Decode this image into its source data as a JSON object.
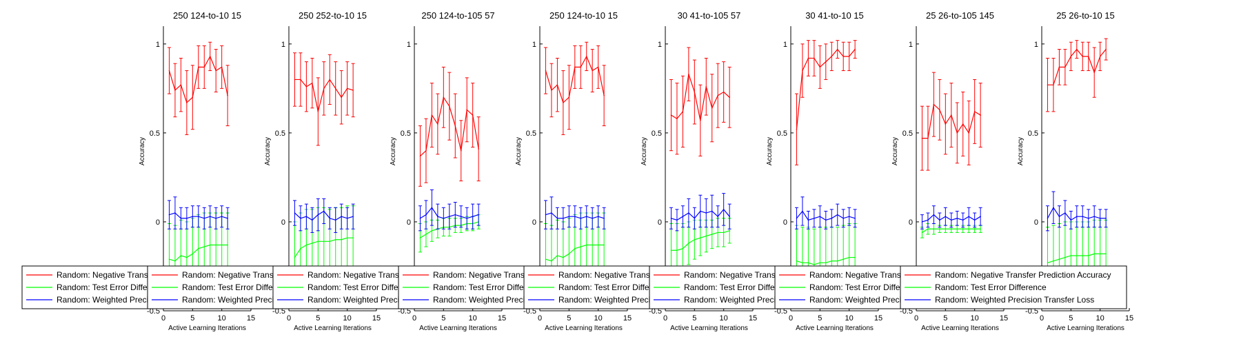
{
  "chart_data": [
    {
      "type": "line",
      "title": "250  124-to-10  15",
      "xlabel": "Active Learning Iterations",
      "ylabel": "Accuracy",
      "xlim": [
        0,
        15
      ],
      "ylim": [
        -0.5,
        1.1
      ],
      "xticks": [
        0,
        5,
        10,
        15
      ],
      "yticks": [
        -0.5,
        0,
        0.5,
        1
      ],
      "x": [
        1,
        2,
        3,
        4,
        5,
        6,
        7,
        8,
        9,
        10,
        11
      ],
      "legend_cut": 19,
      "series": [
        {
          "name": "Random: Negative Transfer Prediction Accuracy",
          "color": "#ff0000",
          "values": [
            0.85,
            0.74,
            0.77,
            0.67,
            0.7,
            0.87,
            0.87,
            0.93,
            0.85,
            0.87,
            0.71
          ],
          "errors": [
            0.13,
            0.15,
            0.15,
            0.18,
            0.18,
            0.12,
            0.12,
            0.08,
            0.12,
            0.12,
            0.17
          ]
        },
        {
          "name": "Random: Test Error Difference",
          "color": "#00ff00",
          "values": [
            -0.21,
            -0.22,
            -0.19,
            -0.2,
            -0.18,
            -0.15,
            -0.14,
            -0.13,
            -0.13,
            -0.13,
            -0.13
          ],
          "errors": [
            0.2,
            0.2,
            0.2,
            0.2,
            0.2,
            0.19,
            0.19,
            0.18,
            0.18,
            0.18,
            0.18
          ]
        },
        {
          "name": "Random: Weighted Precision Transfer Loss",
          "color": "#0000ff",
          "values": [
            0.04,
            0.05,
            0.02,
            0.02,
            0.03,
            0.03,
            0.02,
            0.03,
            0.02,
            0.03,
            0.02
          ],
          "errors": [
            0.08,
            0.09,
            0.06,
            0.06,
            0.06,
            0.06,
            0.06,
            0.06,
            0.06,
            0.06,
            0.06
          ]
        }
      ]
    },
    {
      "type": "line",
      "title": "250  252-to-10  15",
      "xlabel": "Active Learning Iterations",
      "ylabel": "Accuracy",
      "xlim": [
        0,
        15
      ],
      "ylim": [
        -0.5,
        1.1
      ],
      "xticks": [
        0,
        5,
        10,
        15
      ],
      "yticks": [
        -0.5,
        0,
        0.5,
        1
      ],
      "x": [
        1,
        2,
        3,
        4,
        5,
        6,
        7,
        8,
        9,
        10,
        11
      ],
      "legend_cut": 19,
      "series": [
        {
          "name": "Random: Negative Transfer Prediction Accuracy",
          "color": "#ff0000",
          "values": [
            0.8,
            0.8,
            0.76,
            0.78,
            0.62,
            0.75,
            0.8,
            0.75,
            0.7,
            0.75,
            0.74
          ],
          "errors": [
            0.15,
            0.15,
            0.14,
            0.14,
            0.19,
            0.15,
            0.14,
            0.15,
            0.15,
            0.15,
            0.15
          ]
        },
        {
          "name": "Random: Test Error Difference",
          "color": "#00ff00",
          "values": [
            -0.2,
            -0.15,
            -0.13,
            -0.12,
            -0.11,
            -0.11,
            -0.11,
            -0.1,
            -0.1,
            -0.09,
            -0.09
          ],
          "errors": [
            0.2,
            0.2,
            0.2,
            0.19,
            0.19,
            0.19,
            0.18,
            0.18,
            0.18,
            0.18,
            0.18
          ]
        },
        {
          "name": "Random: Weighted Precision Transfer Loss",
          "color": "#0000ff",
          "values": [
            0.05,
            0.02,
            0.03,
            0.01,
            0.04,
            0.06,
            0.02,
            0.01,
            0.03,
            0.02,
            0.03
          ],
          "errors": [
            0.07,
            0.07,
            0.07,
            0.07,
            0.09,
            0.07,
            0.06,
            0.07,
            0.07,
            0.06,
            0.07
          ]
        }
      ]
    },
    {
      "type": "line",
      "title": "250  124-to-105  57",
      "xlabel": "Active Learning Iterations",
      "ylabel": "Accuracy",
      "xlim": [
        0,
        15
      ],
      "ylim": [
        -0.5,
        1.1
      ],
      "xticks": [
        0,
        5,
        10,
        15
      ],
      "yticks": [
        -0.5,
        0,
        0.5,
        1
      ],
      "x": [
        1,
        2,
        3,
        4,
        5,
        6,
        7,
        8,
        9,
        10,
        11
      ],
      "legend_cut": 19,
      "series": [
        {
          "name": "Random: Negative Transfer Prediction Accuracy",
          "color": "#ff0000",
          "values": [
            0.37,
            0.4,
            0.6,
            0.55,
            0.7,
            0.65,
            0.54,
            0.4,
            0.63,
            0.6,
            0.41
          ],
          "errors": [
            0.17,
            0.18,
            0.18,
            0.17,
            0.17,
            0.19,
            0.18,
            0.17,
            0.18,
            0.18,
            0.18
          ]
        },
        {
          "name": "Random: Test Error Difference",
          "color": "#00ff00",
          "values": [
            -0.09,
            -0.07,
            -0.05,
            -0.04,
            -0.03,
            -0.03,
            -0.02,
            -0.02,
            -0.01,
            -0.01,
            0.0
          ],
          "errors": [
            0.08,
            0.07,
            0.06,
            0.05,
            0.05,
            0.05,
            0.04,
            0.04,
            0.04,
            0.04,
            0.04
          ]
        },
        {
          "name": "Random: Weighted Precision Transfer Loss",
          "color": "#0000ff",
          "values": [
            0.02,
            0.04,
            0.08,
            0.03,
            0.02,
            0.03,
            0.04,
            0.03,
            0.02,
            0.03,
            0.04
          ],
          "errors": [
            0.07,
            0.08,
            0.1,
            0.07,
            0.06,
            0.07,
            0.07,
            0.06,
            0.06,
            0.07,
            0.06
          ]
        }
      ]
    },
    {
      "type": "line",
      "title": "250  124-to-10  15",
      "xlabel": "Active Learning Iterations",
      "ylabel": "Accuracy",
      "xlim": [
        0,
        15
      ],
      "ylim": [
        -0.5,
        1.1
      ],
      "xticks": [
        0,
        5,
        10,
        15
      ],
      "yticks": [
        -0.5,
        0,
        0.5,
        1
      ],
      "x": [
        1,
        2,
        3,
        4,
        5,
        6,
        7,
        8,
        9,
        10,
        11
      ],
      "legend_cut": 19,
      "series": [
        {
          "name": "Random: Negative Transfer Prediction Accuracy",
          "color": "#ff0000",
          "values": [
            0.85,
            0.74,
            0.77,
            0.67,
            0.7,
            0.87,
            0.87,
            0.93,
            0.85,
            0.87,
            0.71
          ],
          "errors": [
            0.13,
            0.15,
            0.15,
            0.18,
            0.18,
            0.12,
            0.12,
            0.08,
            0.12,
            0.12,
            0.17
          ]
        },
        {
          "name": "Random: Test Error Difference",
          "color": "#00ff00",
          "values": [
            -0.21,
            -0.22,
            -0.19,
            -0.2,
            -0.18,
            -0.15,
            -0.14,
            -0.13,
            -0.13,
            -0.13,
            -0.13
          ],
          "errors": [
            0.2,
            0.2,
            0.2,
            0.2,
            0.2,
            0.19,
            0.19,
            0.18,
            0.18,
            0.18,
            0.18
          ]
        },
        {
          "name": "Random: Weighted Precision Transfer Loss",
          "color": "#0000ff",
          "values": [
            0.04,
            0.05,
            0.02,
            0.02,
            0.03,
            0.03,
            0.02,
            0.03,
            0.02,
            0.03,
            0.02
          ],
          "errors": [
            0.08,
            0.09,
            0.06,
            0.06,
            0.06,
            0.06,
            0.06,
            0.06,
            0.06,
            0.06,
            0.06
          ]
        }
      ]
    },
    {
      "type": "line",
      "title": "30  41-to-105  57",
      "xlabel": "Active Learning Iterations",
      "ylabel": "Accuracy",
      "xlim": [
        0,
        15
      ],
      "ylim": [
        -0.5,
        1.1
      ],
      "xticks": [
        0,
        5,
        10,
        15
      ],
      "yticks": [
        -0.5,
        0,
        0.5,
        1
      ],
      "x": [
        1,
        2,
        3,
        4,
        5,
        6,
        7,
        8,
        9,
        10,
        11
      ],
      "legend_cut": 19,
      "series": [
        {
          "name": "Random: Negative Transfer Prediction Accuracy",
          "color": "#ff0000",
          "values": [
            0.6,
            0.58,
            0.62,
            0.83,
            0.73,
            0.57,
            0.76,
            0.64,
            0.71,
            0.73,
            0.7
          ],
          "errors": [
            0.2,
            0.2,
            0.2,
            0.15,
            0.18,
            0.2,
            0.16,
            0.19,
            0.18,
            0.17,
            0.17
          ]
        },
        {
          "name": "Random: Test Error Difference",
          "color": "#00ff00",
          "values": [
            -0.16,
            -0.16,
            -0.15,
            -0.12,
            -0.1,
            -0.09,
            -0.08,
            -0.07,
            -0.06,
            -0.06,
            -0.05
          ],
          "errors": [
            0.15,
            0.15,
            0.14,
            0.12,
            0.11,
            0.1,
            0.09,
            0.08,
            0.08,
            0.08,
            0.07
          ]
        },
        {
          "name": "Random: Weighted Precision Transfer Loss",
          "color": "#0000ff",
          "values": [
            0.02,
            0.01,
            0.03,
            0.05,
            0.02,
            0.06,
            0.05,
            0.06,
            0.03,
            0.07,
            0.03
          ],
          "errors": [
            0.06,
            0.06,
            0.06,
            0.08,
            0.06,
            0.09,
            0.08,
            0.09,
            0.06,
            0.09,
            0.07
          ]
        }
      ]
    },
    {
      "type": "line",
      "title": "30  41-to-10  15",
      "xlabel": "Active Learning Iterations",
      "ylabel": "Accuracy",
      "xlim": [
        0,
        15
      ],
      "ylim": [
        -0.5,
        1.1
      ],
      "xticks": [
        0,
        5,
        10,
        15
      ],
      "yticks": [
        -0.5,
        0,
        0.5,
        1
      ],
      "x": [
        1,
        2,
        3,
        4,
        5,
        6,
        7,
        8,
        9,
        10,
        11
      ],
      "legend_cut": 19,
      "series": [
        {
          "name": "Random: Negative Transfer Prediction Accuracy",
          "color": "#ff0000",
          "values": [
            0.52,
            0.85,
            0.92,
            0.92,
            0.87,
            0.9,
            0.93,
            0.97,
            0.93,
            0.93,
            0.97
          ],
          "errors": [
            0.2,
            0.15,
            0.1,
            0.1,
            0.12,
            0.1,
            0.08,
            0.05,
            0.08,
            0.08,
            0.05
          ]
        },
        {
          "name": "Random: Test Error Difference",
          "color": "#00ff00",
          "values": [
            -0.22,
            -0.23,
            -0.23,
            -0.24,
            -0.23,
            -0.23,
            -0.22,
            -0.22,
            -0.21,
            -0.2,
            -0.2
          ],
          "errors": [
            0.2,
            0.2,
            0.2,
            0.2,
            0.2,
            0.2,
            0.19,
            0.19,
            0.19,
            0.19,
            0.19
          ]
        },
        {
          "name": "Random: Weighted Precision Transfer Loss",
          "color": "#0000ff",
          "values": [
            0.02,
            0.06,
            0.01,
            0.02,
            0.03,
            0.01,
            0.02,
            0.04,
            0.02,
            0.03,
            0.02
          ],
          "errors": [
            0.06,
            0.08,
            0.05,
            0.05,
            0.06,
            0.05,
            0.05,
            0.06,
            0.05,
            0.05,
            0.05
          ]
        }
      ]
    },
    {
      "type": "line",
      "title": "25  26-to-105  145",
      "xlabel": "Active Learning Iterations",
      "ylabel": "Accuracy",
      "xlim": [
        0,
        15
      ],
      "ylim": [
        -0.5,
        1.1
      ],
      "xticks": [
        0,
        5,
        10,
        15
      ],
      "yticks": [
        -0.5,
        0,
        0.5,
        1
      ],
      "x": [
        1,
        2,
        3,
        4,
        5,
        6,
        7,
        8,
        9,
        10,
        11
      ],
      "legend_cut": 55,
      "series": [
        {
          "name": "Random: Negative Transfer Prediction Accuracy",
          "color": "#ff0000",
          "values": [
            0.47,
            0.47,
            0.66,
            0.63,
            0.55,
            0.6,
            0.5,
            0.55,
            0.5,
            0.62,
            0.6
          ],
          "errors": [
            0.18,
            0.18,
            0.18,
            0.17,
            0.17,
            0.18,
            0.17,
            0.18,
            0.18,
            0.18,
            0.18
          ]
        },
        {
          "name": "Random: Test Error Difference",
          "color": "#00ff00",
          "values": [
            -0.06,
            -0.04,
            -0.04,
            -0.04,
            -0.04,
            -0.04,
            -0.04,
            -0.04,
            -0.04,
            -0.04,
            -0.04
          ],
          "errors": [
            0.03,
            0.03,
            0.03,
            0.02,
            0.02,
            0.02,
            0.02,
            0.02,
            0.02,
            0.02,
            0.02
          ]
        },
        {
          "name": "Random: Weighted Precision Transfer Loss",
          "color": "#0000ff",
          "values": [
            0.0,
            0.01,
            0.04,
            0.01,
            0.03,
            0.01,
            0.02,
            0.01,
            0.03,
            0.01,
            0.03
          ],
          "errors": [
            0.04,
            0.04,
            0.05,
            0.04,
            0.05,
            0.04,
            0.04,
            0.04,
            0.05,
            0.04,
            0.05
          ]
        }
      ]
    },
    {
      "type": "line",
      "title": "25  26-to-10  15",
      "xlabel": "Active Learning Iterations",
      "ylabel": "Accuracy",
      "xlim": [
        0,
        15
      ],
      "ylim": [
        -0.5,
        1.1
      ],
      "xticks": [
        0,
        5,
        10,
        15
      ],
      "yticks": [
        -0.5,
        0,
        0.5,
        1
      ],
      "x": [
        1,
        2,
        3,
        4,
        5,
        6,
        7,
        8,
        9,
        10,
        11
      ],
      "legend_cut": 0,
      "series": [
        {
          "name": "Random: Negative Transfer Prediction Accuracy",
          "color": "#ff0000",
          "values": [
            0.77,
            0.77,
            0.87,
            0.87,
            0.93,
            0.97,
            0.93,
            0.93,
            0.84,
            0.93,
            0.97
          ],
          "errors": [
            0.15,
            0.15,
            0.1,
            0.1,
            0.08,
            0.05,
            0.08,
            0.08,
            0.14,
            0.08,
            0.06
          ]
        },
        {
          "name": "Random: Test Error Difference",
          "color": "#00ff00",
          "values": [
            -0.23,
            -0.22,
            -0.21,
            -0.2,
            -0.19,
            -0.19,
            -0.19,
            -0.19,
            -0.18,
            -0.18,
            -0.18
          ],
          "errors": [
            0.2,
            0.2,
            0.2,
            0.2,
            0.19,
            0.19,
            0.19,
            0.19,
            0.19,
            0.19,
            0.19
          ]
        },
        {
          "name": "Random: Weighted Precision Transfer Loss",
          "color": "#0000ff",
          "values": [
            0.02,
            0.08,
            0.03,
            0.05,
            0.01,
            0.03,
            0.03,
            0.02,
            0.03,
            0.02,
            0.02
          ],
          "errors": [
            0.07,
            0.09,
            0.06,
            0.07,
            0.05,
            0.06,
            0.06,
            0.05,
            0.06,
            0.05,
            0.05
          ]
        }
      ]
    }
  ]
}
